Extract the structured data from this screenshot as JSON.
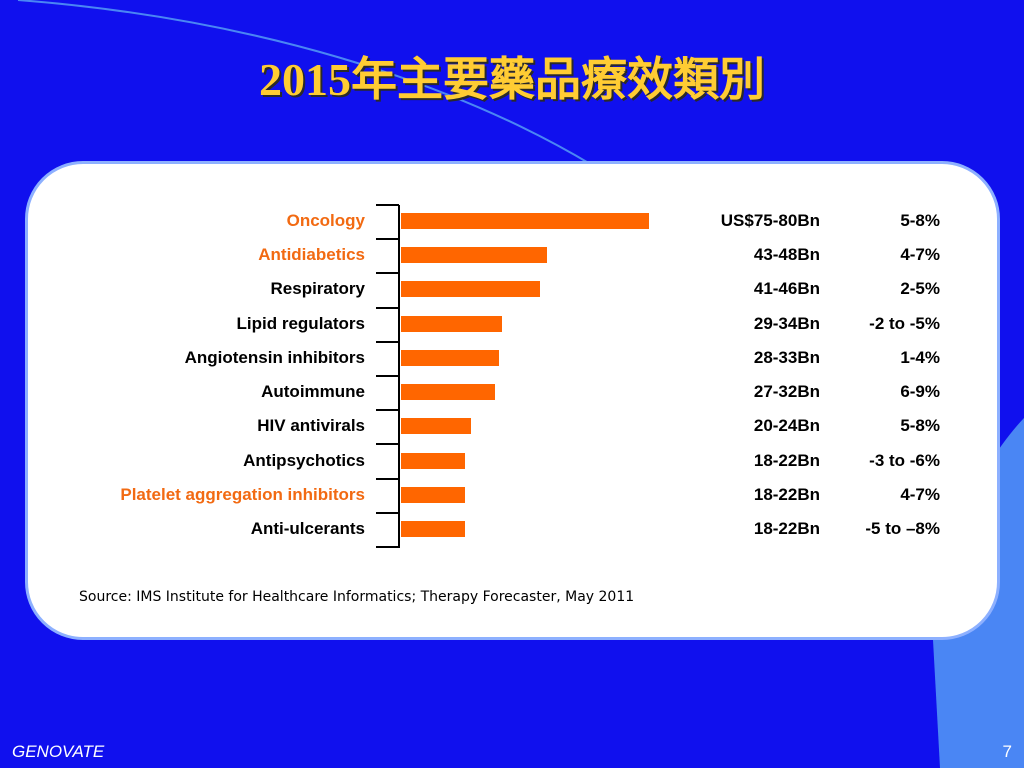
{
  "slide": {
    "title": "2015年主要藥品療效類別",
    "source": "Source: IMS Institute for Healthcare Informatics; Therapy Forecaster, May 2011",
    "footer_brand": "GENOVATE",
    "page_number": "7"
  },
  "colors": {
    "background": "#1010EE",
    "decoration": "#4A86F4",
    "title": "#FFCC33",
    "panel": "#FFFFFF",
    "panel_border": "#8DB0FF",
    "bar": "#FF6600",
    "highlight_label": "#F26A12",
    "text": "#000000",
    "footer_text": "#FFFFFF"
  },
  "chart_data": {
    "type": "bar",
    "orientation": "horizontal",
    "categories": [
      "Oncology",
      "Antidiabetics",
      "Respiratory",
      "Lipid regulators",
      "Angiotensin inhibitors",
      "Autoimmune",
      "HIV antivirals",
      "Antipsychotics",
      "Platelet aggregation inhibitors",
      "Anti-ulcerants"
    ],
    "values": [
      77.5,
      45.5,
      43.5,
      31.5,
      30.5,
      29.5,
      22,
      20,
      20,
      20
    ],
    "xlim": [
      0,
      80
    ],
    "spending_labels": [
      "US$75-80Bn",
      "43-48Bn",
      "41-46Bn",
      "29-34Bn",
      "28-33Bn",
      "27-32Bn",
      "20-24Bn",
      "18-22Bn",
      "18-22Bn",
      "18-22Bn"
    ],
    "growth_labels": [
      "5-8%",
      "4-7%",
      "2-5%",
      "-2 to -5%",
      "1-4%",
      "6-9%",
      "5-8%",
      "-3 to -6%",
      "4-7%",
      "-5 to –8%"
    ],
    "highlighted": [
      true,
      true,
      false,
      false,
      false,
      false,
      false,
      false,
      true,
      false
    ],
    "grid": false
  }
}
